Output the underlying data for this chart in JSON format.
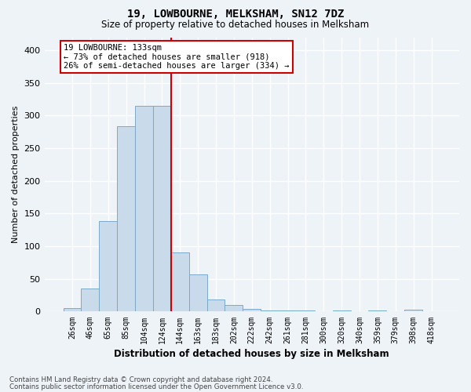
{
  "title": "19, LOWBOURNE, MELKSHAM, SN12 7DZ",
  "subtitle": "Size of property relative to detached houses in Melksham",
  "xlabel": "Distribution of detached houses by size in Melksham",
  "ylabel": "Number of detached properties",
  "bar_labels": [
    "26sqm",
    "46sqm",
    "65sqm",
    "85sqm",
    "104sqm",
    "124sqm",
    "144sqm",
    "163sqm",
    "183sqm",
    "202sqm",
    "222sqm",
    "242sqm",
    "261sqm",
    "281sqm",
    "300sqm",
    "320sqm",
    "340sqm",
    "359sqm",
    "379sqm",
    "398sqm",
    "418sqm"
  ],
  "bar_values": [
    5,
    35,
    138,
    284,
    315,
    315,
    90,
    57,
    18,
    10,
    4,
    2,
    2,
    2,
    0,
    2,
    0,
    2,
    0,
    3,
    0
  ],
  "bar_color": "#c9daea",
  "bar_edge_color": "#7aaac8",
  "vline_x": 5.5,
  "vline_color": "#cc0000",
  "annotation_title": "19 LOWBOURNE: 133sqm",
  "annotation_line1": "← 73% of detached houses are smaller (918)",
  "annotation_line2": "26% of semi-detached houses are larger (334) →",
  "annotation_box_bg": "#ffffff",
  "annotation_box_edge": "#cc0000",
  "ylim": [
    0,
    420
  ],
  "yticks": [
    0,
    50,
    100,
    150,
    200,
    250,
    300,
    350,
    400
  ],
  "footer1": "Contains HM Land Registry data © Crown copyright and database right 2024.",
  "footer2": "Contains public sector information licensed under the Open Government Licence v3.0.",
  "bg_color": "#eef3f8",
  "grid_color": "#ffffff",
  "title_fontsize": 10,
  "subtitle_fontsize": 8.5,
  "ylabel_fontsize": 8,
  "xlabel_fontsize": 8.5,
  "tick_fontsize": 8,
  "xtick_fontsize": 7,
  "footer_fontsize": 6.2
}
